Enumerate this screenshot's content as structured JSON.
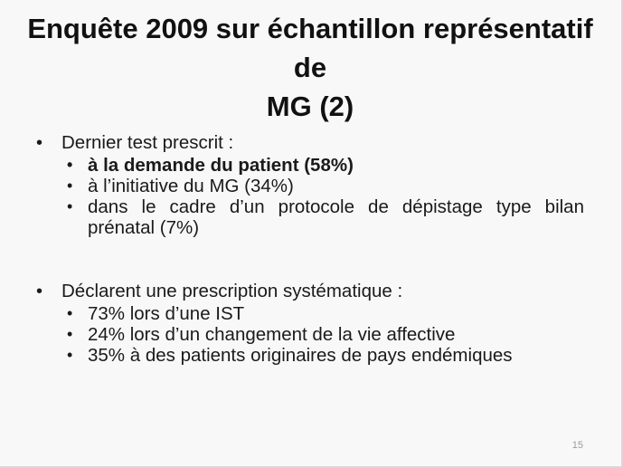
{
  "slide": {
    "title_line1": "Enquête 2009 sur échantillon représentatif de",
    "title_line2": "MG (2)",
    "sections": [
      {
        "heading": "Dernier test prescrit :",
        "items": [
          "à la demande du patient (58%)",
          "à l’initiative du MG (34%)",
          "dans le cadre d’un protocole de dépistage type bilan prénatal (7%)"
        ]
      },
      {
        "heading": "Déclarent une prescription systématique :",
        "items": [
          "73% lors d’une IST",
          "24% lors d’un changement de la vie affective",
          "35% à des patients originaires de pays endémiques"
        ]
      }
    ],
    "page_number": "15"
  }
}
